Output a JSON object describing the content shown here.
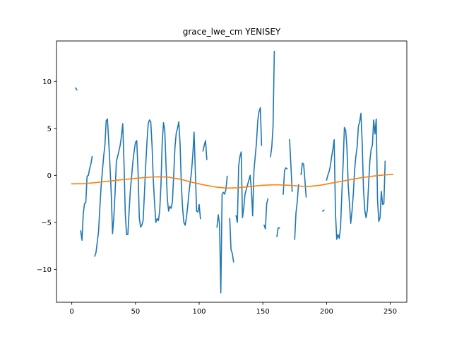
{
  "chart_data": {
    "type": "line",
    "title": "grace_lwe_cm YENISEY",
    "xlabel": "",
    "ylabel": "",
    "xlim": [
      -12,
      263
    ],
    "ylim": [
      -13.5,
      14.3
    ],
    "x_ticks": [
      0,
      50,
      100,
      150,
      200,
      250
    ],
    "x_tick_labels": [
      "0",
      "50",
      "100",
      "150",
      "200",
      "250"
    ],
    "y_ticks": [
      -10,
      -5,
      0,
      5,
      10
    ],
    "y_tick_labels": [
      "−10",
      "−5",
      "0",
      "5",
      "10"
    ],
    "grid": false,
    "legend": "none",
    "series": [
      {
        "color": "#1f77b4",
        "points": [
          [
            3,
            9.3
          ],
          [
            4,
            9.1
          ],
          null,
          [
            7,
            -5.9
          ],
          [
            8,
            -6.9
          ],
          [
            9,
            -4.1
          ],
          [
            10,
            -3.0
          ],
          [
            11,
            -2.9
          ],
          [
            12,
            -0.1
          ],
          [
            13,
            0.0
          ],
          [
            14,
            0.7
          ],
          [
            15,
            1.2
          ],
          [
            16,
            2.0
          ],
          null,
          [
            18,
            -8.6
          ],
          [
            19,
            -8.2
          ],
          [
            20,
            -7.1
          ],
          [
            21,
            -6.0
          ],
          [
            22,
            -3.5
          ],
          [
            23,
            -1.2
          ],
          [
            24,
            0.4
          ],
          [
            25,
            2.0
          ],
          [
            26,
            3.2
          ],
          [
            27,
            5.8
          ],
          [
            28,
            6.0
          ],
          [
            29,
            3.6
          ],
          [
            30,
            1.0
          ],
          [
            31,
            -2.0
          ],
          [
            32,
            -6.2
          ],
          [
            33,
            -4.5
          ],
          [
            34,
            -1.8
          ],
          [
            35,
            1.5
          ],
          [
            36,
            2.0
          ],
          [
            37,
            2.6
          ],
          [
            38,
            3.2
          ],
          [
            39,
            4.2
          ],
          [
            40,
            5.5
          ],
          [
            41,
            1.3
          ],
          [
            42,
            -4.1
          ],
          [
            43,
            -6.3
          ],
          [
            44,
            -6.3
          ],
          [
            45,
            -3.8
          ],
          [
            46,
            -1.5
          ],
          [
            47,
            -0.1
          ],
          [
            48,
            1.5
          ],
          [
            49,
            2.6
          ],
          [
            50,
            3.5
          ],
          [
            51,
            3.7
          ],
          [
            52,
            0.5
          ],
          [
            53,
            -4.5
          ],
          [
            54,
            -5.5
          ],
          [
            55,
            -5.3
          ],
          [
            56,
            -4.8
          ],
          [
            57,
            -2.0
          ],
          [
            58,
            1.0
          ],
          [
            59,
            3.5
          ],
          [
            60,
            5.5
          ],
          [
            61,
            5.9
          ],
          [
            62,
            5.7
          ],
          [
            63,
            3.2
          ],
          [
            64,
            -0.5
          ],
          [
            65,
            -3.0
          ],
          [
            66,
            -5.0
          ],
          [
            67,
            -4.6
          ],
          [
            68,
            -4.8
          ],
          [
            69,
            -3.8
          ],
          [
            70,
            -1.0
          ],
          [
            71,
            3.5
          ],
          [
            72,
            5.6
          ],
          [
            73,
            4.8
          ],
          [
            74,
            1.0
          ],
          [
            75,
            -2.5
          ],
          [
            76,
            -3.8
          ],
          [
            77,
            -3.3
          ],
          [
            78,
            -3.5
          ],
          [
            79,
            -2.8
          ],
          [
            80,
            0.0
          ],
          [
            81,
            3.0
          ],
          [
            82,
            4.5
          ],
          [
            83,
            5.0
          ],
          [
            84,
            5.7
          ],
          [
            85,
            3.4
          ],
          [
            86,
            -1.0
          ],
          [
            87,
            -3.5
          ],
          [
            88,
            -5.0
          ],
          [
            89,
            -5.3
          ],
          [
            90,
            -4.5
          ],
          [
            91,
            -3.3
          ],
          [
            92,
            -1.8
          ],
          [
            93,
            -0.7
          ],
          [
            94,
            0.4
          ],
          [
            95,
            2.2
          ],
          [
            96,
            4.6
          ],
          [
            97,
            0.4
          ],
          [
            98,
            -3.8
          ],
          [
            99,
            -3.9
          ],
          [
            100,
            -3.1
          ],
          [
            101,
            -4.6
          ],
          null,
          [
            103,
            2.6
          ],
          [
            104,
            3.2
          ],
          [
            105,
            3.7
          ],
          [
            106,
            1.7
          ],
          null,
          [
            114,
            -5.5
          ],
          [
            115,
            -4.2
          ],
          [
            116,
            -5.2
          ],
          [
            117,
            -12.5
          ],
          [
            118,
            -2.0
          ],
          [
            119,
            -1.8
          ],
          [
            120,
            -2.0
          ],
          [
            121,
            -1.5
          ],
          [
            122,
            -0.1
          ],
          null,
          [
            124,
            -4.6
          ],
          [
            125,
            -7.9
          ],
          [
            126,
            -8.3
          ],
          [
            127,
            -9.2
          ],
          null,
          [
            129,
            -4.3
          ],
          [
            130,
            -5.0
          ],
          [
            131,
            1.0
          ],
          [
            132,
            2.0
          ],
          [
            133,
            2.5
          ],
          [
            134,
            -4.5
          ],
          [
            135,
            -3.5
          ],
          [
            136,
            -2.0
          ],
          [
            137,
            -1.5
          ],
          [
            138,
            -1.0
          ],
          [
            139,
            -0.5
          ],
          [
            140,
            0.0
          ],
          [
            141,
            -1.5
          ],
          [
            142,
            -4.3
          ],
          [
            143,
            0.5
          ],
          [
            144,
            2.0
          ],
          [
            145,
            3.5
          ],
          [
            146,
            5.8
          ],
          [
            147,
            6.8
          ],
          [
            148,
            7.2
          ],
          [
            149,
            3.2
          ],
          null,
          [
            151,
            -5.3
          ],
          [
            152,
            -5.7
          ],
          [
            153,
            -3.0
          ],
          [
            154,
            -2.5
          ],
          null,
          [
            156,
            2.0
          ],
          [
            157,
            3.0
          ],
          [
            158,
            5.2
          ],
          [
            159,
            13.2
          ],
          null,
          [
            161,
            -6.5
          ],
          [
            162,
            -5.6
          ],
          [
            163,
            -5.6
          ],
          null,
          [
            166,
            -2.0
          ],
          [
            167,
            0.5
          ],
          [
            168,
            0.8
          ],
          [
            169,
            0.7
          ],
          null,
          [
            171,
            3.8
          ],
          [
            172,
            1.1
          ],
          [
            173,
            -1.7
          ],
          null,
          [
            175,
            -6.8
          ],
          [
            176,
            -4.0
          ],
          [
            177,
            -2.8
          ],
          [
            178,
            -1.0
          ],
          null,
          [
            180,
            0.1
          ],
          [
            181,
            1.3
          ],
          [
            182,
            1.2
          ],
          [
            183,
            -0.5
          ],
          [
            184,
            -2.3
          ],
          null,
          [
            197,
            -3.8
          ],
          [
            198,
            -3.7
          ],
          null,
          [
            200,
            -0.5
          ],
          [
            201,
            0.0
          ],
          [
            202,
            0.4
          ],
          [
            203,
            1.0
          ],
          [
            204,
            2.0
          ],
          [
            205,
            2.8
          ],
          [
            206,
            3.8
          ],
          [
            207,
            -4.0
          ],
          [
            208,
            -6.8
          ],
          [
            209,
            -6.3
          ],
          [
            210,
            -6.7
          ],
          [
            211,
            -5.5
          ],
          [
            212,
            -2.0
          ],
          [
            213,
            1.2
          ],
          [
            214,
            5.1
          ],
          [
            215,
            4.8
          ],
          [
            216,
            3.0
          ],
          [
            217,
            -1.0
          ],
          [
            218,
            -3.0
          ],
          [
            219,
            -5.1
          ],
          [
            220,
            -3.8
          ],
          [
            221,
            -2.0
          ],
          [
            222,
            0.5
          ],
          [
            223,
            2.0
          ],
          [
            224,
            3.0
          ],
          [
            225,
            5.2
          ],
          [
            226,
            5.7
          ],
          [
            227,
            6.6
          ],
          [
            228,
            3.4
          ],
          [
            229,
            -1.5
          ],
          [
            230,
            -3.7
          ],
          [
            231,
            -4.5
          ],
          [
            232,
            -3.7
          ],
          [
            233,
            -1.0
          ],
          [
            234,
            1.5
          ],
          [
            235,
            2.8
          ],
          [
            236,
            3.2
          ],
          [
            237,
            5.9
          ],
          [
            238,
            4.4
          ],
          [
            239,
            6.0
          ],
          [
            240,
            -2.5
          ],
          [
            241,
            -4.9
          ],
          [
            242,
            -4.5
          ],
          [
            243,
            -1.7
          ],
          [
            244,
            -3.1
          ],
          [
            245,
            -3.0
          ],
          [
            246,
            1.5
          ]
        ]
      },
      {
        "color": "#ff7f0e",
        "points": [
          [
            0,
            -0.9
          ],
          [
            10,
            -0.88
          ],
          [
            20,
            -0.75
          ],
          [
            30,
            -0.6
          ],
          [
            40,
            -0.45
          ],
          [
            50,
            -0.32
          ],
          [
            60,
            -0.2
          ],
          [
            68,
            -0.15
          ],
          [
            75,
            -0.18
          ],
          [
            85,
            -0.4
          ],
          [
            95,
            -0.75
          ],
          [
            105,
            -1.05
          ],
          [
            115,
            -1.28
          ],
          [
            122,
            -1.35
          ],
          [
            130,
            -1.32
          ],
          [
            140,
            -1.18
          ],
          [
            150,
            -1.05
          ],
          [
            160,
            -1.0
          ],
          [
            170,
            -1.05
          ],
          [
            180,
            -1.15
          ],
          [
            186,
            -1.18
          ],
          [
            195,
            -1.05
          ],
          [
            205,
            -0.8
          ],
          [
            215,
            -0.55
          ],
          [
            225,
            -0.3
          ],
          [
            235,
            -0.1
          ],
          [
            245,
            0.05
          ],
          [
            252,
            0.1
          ]
        ]
      }
    ]
  }
}
